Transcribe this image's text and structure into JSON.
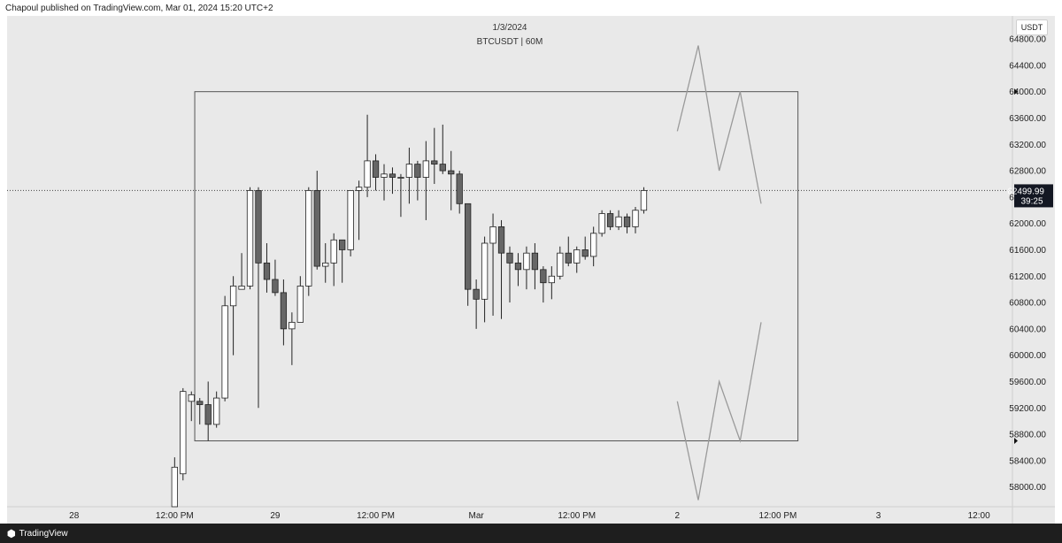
{
  "publisher_line": "Chapoul published on TradingView.com, Mar 01, 2024 15:20 UTC+2",
  "header": {
    "date": "1/3/2024",
    "symbol": "BTCUSDT | 60M",
    "currency_badge": "USDT"
  },
  "footer": {
    "brand": "TradingView",
    "logo_icon": "tradingview-logo-icon"
  },
  "colors": {
    "background": "#e9e9e9",
    "candle_up": "#ffffff",
    "candle_down": "#666666",
    "wick": "#222222",
    "box_line": "#555555",
    "projection": "#9a9a9a"
  },
  "chart_data": {
    "type": "candlestick",
    "y_axis": {
      "ylim": [
        57700,
        65150
      ],
      "ticks": [
        "64800.00",
        "64400.00",
        "64000.00",
        "63600.00",
        "63200.00",
        "62800.00",
        "62400.00",
        "62000.00",
        "61600.00",
        "61200.00",
        "60800.00",
        "60400.00",
        "60000.00",
        "59600.00",
        "59200.00",
        "58800.00",
        "58400.00",
        "58000.00"
      ]
    },
    "x_axis": {
      "range_hours": [
        -8,
        112
      ],
      "ticks": [
        {
          "t": 0,
          "label": "28"
        },
        {
          "t": 12,
          "label": "12:00 PM"
        },
        {
          "t": 24,
          "label": "29"
        },
        {
          "t": 36,
          "label": "12:00 PM"
        },
        {
          "t": 48,
          "label": "Mar"
        },
        {
          "t": 60,
          "label": "12:00 PM"
        },
        {
          "t": 72,
          "label": "2"
        },
        {
          "t": 84,
          "label": "12:00 PM"
        },
        {
          "t": 96,
          "label": "3"
        },
        {
          "t": 108,
          "label": "12:00"
        }
      ]
    },
    "current_price": {
      "value": "62499.99",
      "countdown": "39:25",
      "price": 62499.99
    },
    "range_box": {
      "top": 64000,
      "bottom": 58700,
      "t_start": 14.4,
      "t_end": 86.4
    },
    "candles": [
      {
        "o": 57700,
        "h": 58450,
        "l": 57700,
        "c": 58300
      },
      {
        "o": 58200,
        "h": 59500,
        "l": 58100,
        "c": 59450
      },
      {
        "o": 59300,
        "h": 59450,
        "l": 59000,
        "c": 59400
      },
      {
        "o": 59300,
        "h": 59350,
        "l": 58950,
        "c": 59250
      },
      {
        "o": 59250,
        "h": 59600,
        "l": 58700,
        "c": 58950
      },
      {
        "o": 58950,
        "h": 59450,
        "l": 58900,
        "c": 59350
      },
      {
        "o": 59350,
        "h": 60900,
        "l": 59300,
        "c": 60750
      },
      {
        "o": 60750,
        "h": 61200,
        "l": 60000,
        "c": 61050
      },
      {
        "o": 61000,
        "h": 61550,
        "l": 61000,
        "c": 61050
      },
      {
        "o": 61050,
        "h": 62550,
        "l": 61000,
        "c": 62500
      },
      {
        "o": 62500,
        "h": 62550,
        "l": 59200,
        "c": 61400
      },
      {
        "o": 61400,
        "h": 61700,
        "l": 60950,
        "c": 61150
      },
      {
        "o": 61150,
        "h": 61450,
        "l": 60900,
        "c": 60950
      },
      {
        "o": 60950,
        "h": 61150,
        "l": 60150,
        "c": 60400
      },
      {
        "o": 60400,
        "h": 60650,
        "l": 59850,
        "c": 60500
      },
      {
        "o": 60500,
        "h": 61200,
        "l": 60500,
        "c": 61050
      },
      {
        "o": 61050,
        "h": 62550,
        "l": 60900,
        "c": 62500
      },
      {
        "o": 62500,
        "h": 62800,
        "l": 61300,
        "c": 61350
      },
      {
        "o": 61350,
        "h": 61700,
        "l": 61100,
        "c": 61400
      },
      {
        "o": 61400,
        "h": 61850,
        "l": 61050,
        "c": 61750
      },
      {
        "o": 61750,
        "h": 61750,
        "l": 61100,
        "c": 61600
      },
      {
        "o": 61600,
        "h": 62500,
        "l": 61500,
        "c": 62500
      },
      {
        "o": 62500,
        "h": 62650,
        "l": 61750,
        "c": 62550
      },
      {
        "o": 62550,
        "h": 63650,
        "l": 62400,
        "c": 62950
      },
      {
        "o": 62950,
        "h": 63050,
        "l": 62500,
        "c": 62700
      },
      {
        "o": 62700,
        "h": 62900,
        "l": 62350,
        "c": 62750
      },
      {
        "o": 62750,
        "h": 62850,
        "l": 62450,
        "c": 62700
      },
      {
        "o": 62700,
        "h": 62750,
        "l": 62100,
        "c": 62700
      },
      {
        "o": 62700,
        "h": 63150,
        "l": 62300,
        "c": 62900
      },
      {
        "o": 62900,
        "h": 62950,
        "l": 62350,
        "c": 62700
      },
      {
        "o": 62700,
        "h": 63250,
        "l": 62050,
        "c": 62950
      },
      {
        "o": 62950,
        "h": 63450,
        "l": 62600,
        "c": 62900
      },
      {
        "o": 62900,
        "h": 63500,
        "l": 62750,
        "c": 62800
      },
      {
        "o": 62800,
        "h": 63100,
        "l": 62200,
        "c": 62750
      },
      {
        "o": 62750,
        "h": 62800,
        "l": 62150,
        "c": 62300
      },
      {
        "o": 62300,
        "h": 62300,
        "l": 60750,
        "c": 61000
      },
      {
        "o": 61000,
        "h": 61150,
        "l": 60400,
        "c": 60850
      },
      {
        "o": 60850,
        "h": 61800,
        "l": 60500,
        "c": 61700
      },
      {
        "o": 61700,
        "h": 62150,
        "l": 60600,
        "c": 61950
      },
      {
        "o": 61950,
        "h": 62050,
        "l": 60550,
        "c": 61550
      },
      {
        "o": 61550,
        "h": 61650,
        "l": 60800,
        "c": 61400
      },
      {
        "o": 61400,
        "h": 61550,
        "l": 61050,
        "c": 61300
      },
      {
        "o": 61300,
        "h": 61650,
        "l": 61000,
        "c": 61550
      },
      {
        "o": 61550,
        "h": 61700,
        "l": 61000,
        "c": 61300
      },
      {
        "o": 61300,
        "h": 61350,
        "l": 60800,
        "c": 61100
      },
      {
        "o": 61100,
        "h": 61350,
        "l": 60850,
        "c": 61200
      },
      {
        "o": 61200,
        "h": 61650,
        "l": 61150,
        "c": 61550
      },
      {
        "o": 61550,
        "h": 61800,
        "l": 61350,
        "c": 61400
      },
      {
        "o": 61400,
        "h": 61650,
        "l": 61250,
        "c": 61600
      },
      {
        "o": 61600,
        "h": 61800,
        "l": 61450,
        "c": 61500
      },
      {
        "o": 61500,
        "h": 61950,
        "l": 61350,
        "c": 61850
      },
      {
        "o": 61850,
        "h": 62200,
        "l": 61800,
        "c": 62150
      },
      {
        "o": 62150,
        "h": 62200,
        "l": 61900,
        "c": 61950
      },
      {
        "o": 61950,
        "h": 62200,
        "l": 61900,
        "c": 62100
      },
      {
        "o": 62100,
        "h": 62150,
        "l": 61850,
        "c": 61950
      },
      {
        "o": 61950,
        "h": 62250,
        "l": 61850,
        "c": 62200
      },
      {
        "o": 62200,
        "h": 62550,
        "l": 62150,
        "c": 62500
      }
    ],
    "projection_upper": [
      [
        72,
        63400
      ],
      [
        74.5,
        64700
      ],
      [
        77,
        62800
      ],
      [
        79.5,
        64000
      ],
      [
        82,
        62300
      ]
    ],
    "projection_lower": [
      [
        72,
        59300
      ],
      [
        74.5,
        57800
      ],
      [
        77,
        59600
      ],
      [
        79.5,
        58700
      ],
      [
        82,
        60500
      ]
    ]
  }
}
